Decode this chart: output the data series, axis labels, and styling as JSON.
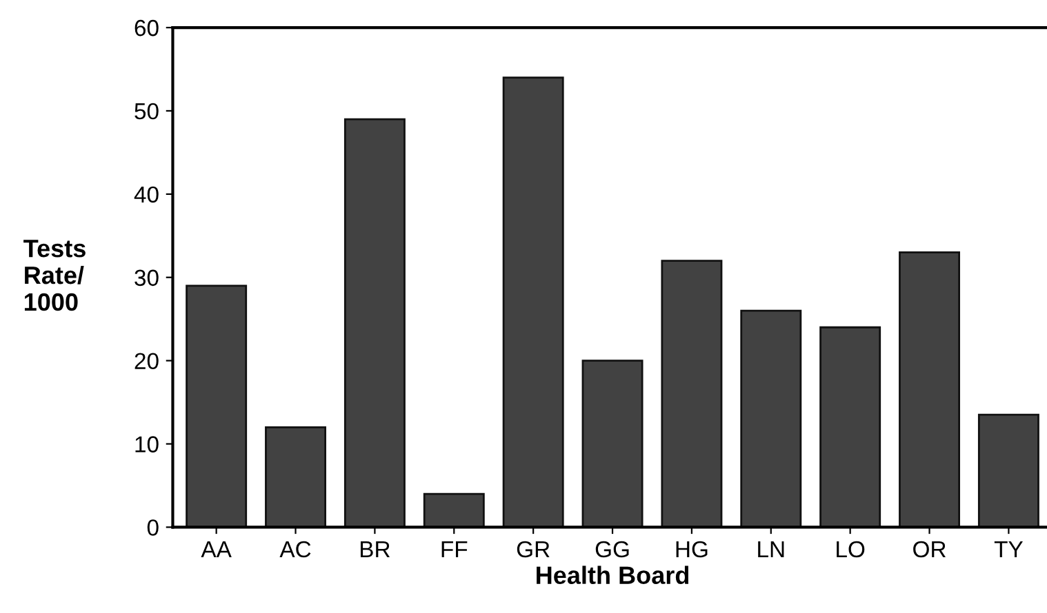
{
  "chart_data": {
    "type": "bar",
    "xlabel": "Health Board",
    "ylabel": "Tests\nRate/\n1000",
    "categories": [
      "AA",
      "AC",
      "BR",
      "FF",
      "GR",
      "GG",
      "HG",
      "LN",
      "LO",
      "OR",
      "TY"
    ],
    "values": [
      29,
      12,
      49,
      4,
      54,
      20,
      32,
      26,
      24,
      33,
      13.5
    ],
    "color": "#424242",
    "ylim": [
      0,
      60
    ],
    "yticks": [
      0,
      10,
      20,
      30,
      40,
      50,
      60
    ],
    "grid": false
  }
}
